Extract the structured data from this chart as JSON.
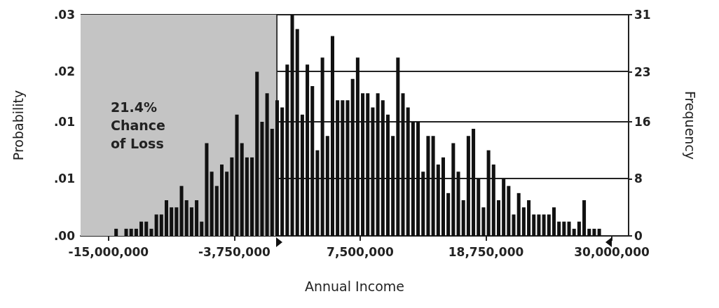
{
  "chart_data": {
    "type": "histogram",
    "xlabel": "Annual Income",
    "ylabel": "Probability",
    "y2label": "Frequency",
    "bins": [
      -15000000,
      -14550000,
      -14100000,
      -13650000,
      -13200000,
      -12750000,
      -12300000,
      -11850000,
      -11400000,
      -10950000,
      -10500000,
      -10050000,
      -9600000,
      -9150000,
      -8700000,
      -8250000,
      -7800000,
      -7350000,
      -6900000,
      -6450000,
      -6000000,
      -5550000,
      -5100000,
      -4650000,
      -4200000,
      -3750000,
      -3300000,
      -2850000,
      -2400000,
      -1950000,
      -1500000,
      -1050000,
      -600000,
      -150000,
      300000,
      750000,
      1200000,
      1650000,
      2100000,
      2550000,
      3000000,
      3450000,
      3900000,
      4350000,
      4800000,
      5250000,
      5700000,
      6150000,
      6600000,
      7050000,
      7500000,
      7950000,
      8400000,
      8850000,
      9300000,
      9750000,
      10200000,
      10650000,
      11100000,
      11550000,
      12000000,
      12450000,
      12900000,
      13350000,
      13800000,
      14250000,
      14700000,
      15150000,
      15600000,
      16050000,
      16500000,
      16950000,
      17400000,
      17850000,
      18300000,
      18750000,
      19200000,
      19650000,
      20100000,
      20550000,
      21000000,
      21450000,
      21900000,
      22350000,
      22800000,
      23250000,
      23700000,
      24150000,
      24600000,
      25050000,
      25500000,
      25950000,
      26400000,
      26850000,
      27300000,
      27750000,
      28200000,
      28650000,
      29100000,
      29550000,
      30000000
    ],
    "series": [
      {
        "axis": "y2",
        "color": "#111111",
        "values": [
          0,
          1,
          0,
          1,
          1,
          1,
          2,
          2,
          1,
          3,
          3,
          5,
          4,
          4,
          7,
          5,
          4,
          5,
          2,
          13,
          9,
          7,
          10,
          9,
          11,
          17,
          13,
          11,
          11,
          23,
          16,
          20,
          15,
          19,
          18,
          24,
          31,
          29,
          17,
          24,
          21,
          12,
          25,
          14,
          28,
          19,
          19,
          19,
          22,
          25,
          20,
          20,
          18,
          20,
          19,
          17,
          14,
          25,
          20,
          18,
          16,
          16,
          9,
          14,
          14,
          10,
          11,
          6,
          13,
          9,
          5,
          14,
          15,
          8,
          4,
          12,
          10,
          5,
          8,
          7,
          3,
          6,
          4,
          5,
          3,
          3,
          3,
          3,
          4,
          2,
          2,
          2,
          1,
          2,
          5,
          1,
          1,
          1,
          0,
          0
        ]
      }
    ],
    "xlim": [
      -17500000,
      31500000
    ],
    "xticks": [
      {
        "value": -15000000,
        "label": "-15,000,000"
      },
      {
        "value": -3750000,
        "label": "-3,750,000"
      },
      {
        "value": 7500000,
        "label": "7,500,000"
      },
      {
        "value": 18750000,
        "label": "18,750,000"
      },
      {
        "value": 30000000,
        "label": "30,000,000"
      }
    ],
    "ylim": [
      0,
      0.0258
    ],
    "yticks": [
      {
        "value": 0,
        "label": ".00"
      },
      {
        "value": 0.0067,
        "label": ".01"
      },
      {
        "value": 0.0133,
        "label": ".01"
      },
      {
        "value": 0.0192,
        "label": ".02"
      },
      {
        "value": 0.0258,
        "label": ".03"
      }
    ],
    "y2lim": [
      0,
      31
    ],
    "y2ticks": [
      0,
      8,
      16,
      23,
      31
    ],
    "bands": [
      {
        "axis": "x",
        "from": -17500000,
        "to": 0,
        "label": "21.4% Chance of Loss",
        "color": "#c4c4c4"
      }
    ],
    "grid": "y"
  }
}
